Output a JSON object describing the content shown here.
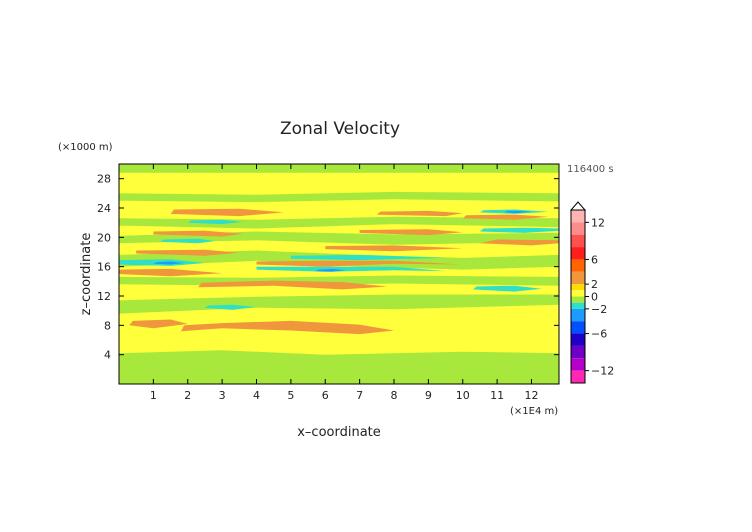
{
  "chart_data": {
    "type": "heatmap",
    "title": "Zonal Velocity",
    "xlabel": "x–coordinate",
    "ylabel": "z–coordinate",
    "x_unit": "(×1E4 m)",
    "y_unit": "(×1000 m)",
    "time_label": "116400 s",
    "xlim": [
      0,
      12.8
    ],
    "ylim": [
      0,
      30
    ],
    "x_ticks": [
      1,
      2,
      3,
      4,
      5,
      6,
      7,
      8,
      9,
      10,
      11,
      12
    ],
    "y_ticks": [
      4,
      8,
      12,
      16,
      20,
      24,
      28
    ],
    "x_tick_labels": [
      "1",
      "2",
      "3",
      "4",
      "5",
      "6",
      "7",
      "8",
      "9",
      "10",
      "11",
      "12"
    ],
    "y_tick_labels": [
      "4",
      "8",
      "12",
      "16",
      "20",
      "24",
      "28"
    ],
    "colorbar": {
      "tick_labels": [
        "12",
        "6",
        "2",
        "0",
        "−2",
        "−6",
        "−12"
      ],
      "tick_values": [
        12,
        6,
        2,
        0,
        -2,
        -6,
        -12
      ],
      "levels": [
        {
          "from": 12,
          "to": 14,
          "color": "#ffb4b4"
        },
        {
          "from": 10,
          "to": 12,
          "color": "#ff8c8c"
        },
        {
          "from": 8,
          "to": 10,
          "color": "#ff5050"
        },
        {
          "from": 6,
          "to": 8,
          "color": "#ff1e1e"
        },
        {
          "from": 4,
          "to": 6,
          "color": "#ff6400"
        },
        {
          "from": 2,
          "to": 4,
          "color": "#f0963c"
        },
        {
          "from": 1,
          "to": 2,
          "color": "#ffdc00"
        },
        {
          "from": 0,
          "to": 1,
          "color": "#ffff3c"
        },
        {
          "from": -1,
          "to": 0,
          "color": "#a8e83c"
        },
        {
          "from": -2,
          "to": -1,
          "color": "#2ee0c8"
        },
        {
          "from": -4,
          "to": -2,
          "color": "#1e9bff"
        },
        {
          "from": -6,
          "to": -4,
          "color": "#0050ff"
        },
        {
          "from": -8,
          "to": -6,
          "color": "#1e00c8"
        },
        {
          "from": -10,
          "to": -8,
          "color": "#6e00c8"
        },
        {
          "from": -12,
          "to": -10,
          "color": "#b400c8"
        },
        {
          "from": -14,
          "to": -12,
          "color": "#ff28b4"
        }
      ]
    },
    "background_value_color": "#ffff3c",
    "regions": [
      {
        "value": -0.5,
        "color": "#a8e83c",
        "polygon": [
          [
            0,
            0
          ],
          [
            12.8,
            0
          ],
          [
            12.8,
            4.2
          ],
          [
            10,
            4.4
          ],
          [
            6,
            4.0
          ],
          [
            3,
            4.6
          ],
          [
            0,
            4.2
          ]
        ]
      },
      {
        "value": -0.5,
        "color": "#a8e83c",
        "polygon": [
          [
            0,
            9.6
          ],
          [
            4,
            10.4
          ],
          [
            8,
            10.2
          ],
          [
            12.8,
            10.8
          ],
          [
            12.8,
            12.2
          ],
          [
            8,
            12.2
          ],
          [
            4,
            11.9
          ],
          [
            0,
            11.4
          ]
        ]
      },
      {
        "value": -0.5,
        "color": "#a8e83c",
        "polygon": [
          [
            0,
            13.6
          ],
          [
            4,
            13.4
          ],
          [
            8,
            13.7
          ],
          [
            12.8,
            13.4
          ],
          [
            12.8,
            14.6
          ],
          [
            8,
            14.8
          ],
          [
            4,
            14.5
          ],
          [
            0,
            14.6
          ]
        ]
      },
      {
        "value": -0.5,
        "color": "#a8e83c",
        "polygon": [
          [
            0,
            16.0
          ],
          [
            4,
            16.8
          ],
          [
            7,
            16.0
          ],
          [
            10,
            15.6
          ],
          [
            12.8,
            16.0
          ],
          [
            12.8,
            17.6
          ],
          [
            10,
            17.2
          ],
          [
            7,
            17.6
          ],
          [
            4,
            18.2
          ],
          [
            0,
            17.6
          ]
        ]
      },
      {
        "value": -0.5,
        "color": "#a8e83c",
        "polygon": [
          [
            0,
            19.2
          ],
          [
            4,
            19.6
          ],
          [
            8,
            19.0
          ],
          [
            12.8,
            19.4
          ],
          [
            12.8,
            20.6
          ],
          [
            8,
            20.4
          ],
          [
            4,
            20.8
          ],
          [
            0,
            20.2
          ]
        ]
      },
      {
        "value": -0.5,
        "color": "#a8e83c",
        "polygon": [
          [
            0,
            21.6
          ],
          [
            4,
            21.2
          ],
          [
            8,
            21.8
          ],
          [
            12.8,
            21.4
          ],
          [
            12.8,
            22.6
          ],
          [
            8,
            22.8
          ],
          [
            4,
            22.4
          ],
          [
            0,
            22.6
          ]
        ]
      },
      {
        "value": -0.5,
        "color": "#a8e83c",
        "polygon": [
          [
            0,
            25.0
          ],
          [
            4,
            24.8
          ],
          [
            8,
            25.2
          ],
          [
            12.8,
            24.9
          ],
          [
            12.8,
            26.0
          ],
          [
            8,
            26.2
          ],
          [
            4,
            25.8
          ],
          [
            0,
            26.0
          ]
        ]
      },
      {
        "value": -0.5,
        "color": "#a8e83c",
        "polygon": [
          [
            0,
            28.8
          ],
          [
            12.8,
            28.8
          ],
          [
            12.8,
            30
          ],
          [
            0,
            30
          ]
        ]
      },
      {
        "value": 2.5,
        "color": "#f0963c",
        "polygon": [
          [
            0.3,
            8.0
          ],
          [
            1,
            7.6
          ],
          [
            2,
            8.2
          ],
          [
            1.5,
            8.8
          ],
          [
            0.4,
            8.6
          ]
        ]
      },
      {
        "value": 2.5,
        "color": "#f0963c",
        "polygon": [
          [
            1.8,
            7.2
          ],
          [
            3,
            7.6
          ],
          [
            5,
            7.3
          ],
          [
            7,
            6.8
          ],
          [
            8,
            7.3
          ],
          [
            7,
            8.1
          ],
          [
            5,
            8.6
          ],
          [
            3,
            8.3
          ],
          [
            1.9,
            8.0
          ]
        ]
      },
      {
        "value": 2.5,
        "color": "#f0963c",
        "polygon": [
          [
            2.3,
            13.2
          ],
          [
            4.5,
            13.4
          ],
          [
            6.5,
            12.9
          ],
          [
            7.8,
            13.3
          ],
          [
            6.5,
            13.9
          ],
          [
            4.5,
            14.1
          ],
          [
            2.4,
            13.8
          ]
        ]
      },
      {
        "value": 2.5,
        "color": "#f0963c",
        "polygon": [
          [
            0,
            15.0
          ],
          [
            1.5,
            14.7
          ],
          [
            3,
            15.1
          ],
          [
            1.5,
            15.7
          ],
          [
            0,
            15.6
          ]
        ]
      },
      {
        "value": 2.5,
        "color": "#f0963c",
        "polygon": [
          [
            4,
            16.3
          ],
          [
            6,
            16.0
          ],
          [
            8,
            16.4
          ],
          [
            10,
            16.3
          ],
          [
            8,
            16.8
          ],
          [
            6,
            16.8
          ],
          [
            4,
            16.7
          ]
        ]
      },
      {
        "value": 2.5,
        "color": "#f0963c",
        "polygon": [
          [
            0.5,
            17.8
          ],
          [
            2.5,
            17.5
          ],
          [
            3.5,
            17.9
          ],
          [
            2.5,
            18.3
          ],
          [
            0.5,
            18.2
          ]
        ]
      },
      {
        "value": 2.5,
        "color": "#f0963c",
        "polygon": [
          [
            6,
            18.4
          ],
          [
            8,
            18.1
          ],
          [
            10,
            18.5
          ],
          [
            8,
            18.9
          ],
          [
            6,
            18.8
          ]
        ]
      },
      {
        "value": 2.5,
        "color": "#f0963c",
        "polygon": [
          [
            10.5,
            19.2
          ],
          [
            12,
            18.9
          ],
          [
            12.8,
            19.2
          ],
          [
            12.8,
            19.6
          ],
          [
            11,
            19.7
          ]
        ]
      },
      {
        "value": 2.5,
        "color": "#f0963c",
        "polygon": [
          [
            1,
            20.4
          ],
          [
            3,
            20.1
          ],
          [
            3.6,
            20.5
          ],
          [
            2.5,
            20.9
          ],
          [
            1,
            20.8
          ]
        ]
      },
      {
        "value": 2.5,
        "color": "#f0963c",
        "polygon": [
          [
            7,
            20.6
          ],
          [
            9,
            20.3
          ],
          [
            10,
            20.7
          ],
          [
            9,
            21.1
          ],
          [
            7,
            21.0
          ]
        ]
      },
      {
        "value": 2.5,
        "color": "#f0963c",
        "polygon": [
          [
            1.5,
            23.2
          ],
          [
            3.5,
            22.9
          ],
          [
            4.8,
            23.4
          ],
          [
            3.5,
            23.9
          ],
          [
            1.6,
            23.8
          ]
        ]
      },
      {
        "value": 2.5,
        "color": "#f0963c",
        "polygon": [
          [
            7.5,
            23.1
          ],
          [
            9.5,
            22.9
          ],
          [
            10,
            23.3
          ],
          [
            9,
            23.6
          ],
          [
            7.6,
            23.5
          ]
        ]
      },
      {
        "value": 2.5,
        "color": "#f0963c",
        "polygon": [
          [
            10,
            22.6
          ],
          [
            11.5,
            22.4
          ],
          [
            12.5,
            22.8
          ],
          [
            11.5,
            23.1
          ],
          [
            10.1,
            23.0
          ]
        ]
      },
      {
        "value": -1.5,
        "color": "#2ee0c8",
        "polygon": [
          [
            0,
            16.3
          ],
          [
            1.5,
            16.1
          ],
          [
            2.5,
            16.5
          ],
          [
            1.5,
            17.0
          ],
          [
            0,
            16.9
          ]
        ]
      },
      {
        "value": -1.5,
        "color": "#2ee0c8",
        "polygon": [
          [
            4,
            15.6
          ],
          [
            6,
            15.3
          ],
          [
            8,
            15.5
          ],
          [
            9.5,
            15.4
          ],
          [
            8,
            16.0
          ],
          [
            6,
            16.0
          ],
          [
            4,
            16.0
          ]
        ]
      },
      {
        "value": -1.5,
        "color": "#2ee0c8",
        "polygon": [
          [
            5,
            17.1
          ],
          [
            7,
            16.9
          ],
          [
            9.5,
            17.2
          ],
          [
            7,
            17.6
          ],
          [
            5,
            17.5
          ]
        ]
      },
      {
        "value": -1.5,
        "color": "#2ee0c8",
        "polygon": [
          [
            10.3,
            12.9
          ],
          [
            11.5,
            12.6
          ],
          [
            12.3,
            13.0
          ],
          [
            11.5,
            13.4
          ],
          [
            10.4,
            13.3
          ]
        ]
      },
      {
        "value": -1.5,
        "color": "#2ee0c8",
        "polygon": [
          [
            2.5,
            10.4
          ],
          [
            3.3,
            10.1
          ],
          [
            4,
            10.5
          ],
          [
            3.3,
            10.8
          ],
          [
            2.6,
            10.7
          ]
        ]
      },
      {
        "value": -1.5,
        "color": "#2ee0c8",
        "polygon": [
          [
            1.2,
            19.4
          ],
          [
            2.3,
            19.2
          ],
          [
            2.8,
            19.5
          ],
          [
            2.3,
            19.8
          ],
          [
            1.3,
            19.7
          ]
        ]
      },
      {
        "value": -1.5,
        "color": "#2ee0c8",
        "polygon": [
          [
            10.5,
            20.8
          ],
          [
            11.8,
            20.6
          ],
          [
            12.8,
            20.9
          ],
          [
            12.8,
            21.2
          ],
          [
            11.8,
            21.3
          ],
          [
            10.6,
            21.2
          ]
        ]
      },
      {
        "value": -1.5,
        "color": "#2ee0c8",
        "polygon": [
          [
            10.5,
            23.4
          ],
          [
            11.5,
            23.2
          ],
          [
            12.5,
            23.5
          ],
          [
            11.5,
            23.8
          ],
          [
            10.6,
            23.7
          ]
        ]
      },
      {
        "value": -1.5,
        "color": "#2ee0c8",
        "polygon": [
          [
            2,
            22.0
          ],
          [
            3,
            21.8
          ],
          [
            3.6,
            22.1
          ],
          [
            3,
            22.4
          ],
          [
            2.1,
            22.3
          ]
        ]
      },
      {
        "value": -3,
        "color": "#1e9bff",
        "polygon": [
          [
            5.7,
            15.4
          ],
          [
            6.2,
            15.3
          ],
          [
            6.6,
            15.5
          ],
          [
            6.2,
            15.7
          ],
          [
            5.8,
            15.6
          ]
        ]
      },
      {
        "value": -3,
        "color": "#1e9bff",
        "polygon": [
          [
            11.2,
            23.4
          ],
          [
            11.6,
            23.3
          ],
          [
            12,
            23.5
          ],
          [
            11.6,
            23.6
          ],
          [
            11.3,
            23.6
          ]
        ]
      },
      {
        "value": -3,
        "color": "#1e9bff",
        "polygon": [
          [
            1,
            16.4
          ],
          [
            1.5,
            16.3
          ],
          [
            1.9,
            16.5
          ],
          [
            1.5,
            16.7
          ],
          [
            1.1,
            16.6
          ]
        ]
      }
    ]
  }
}
